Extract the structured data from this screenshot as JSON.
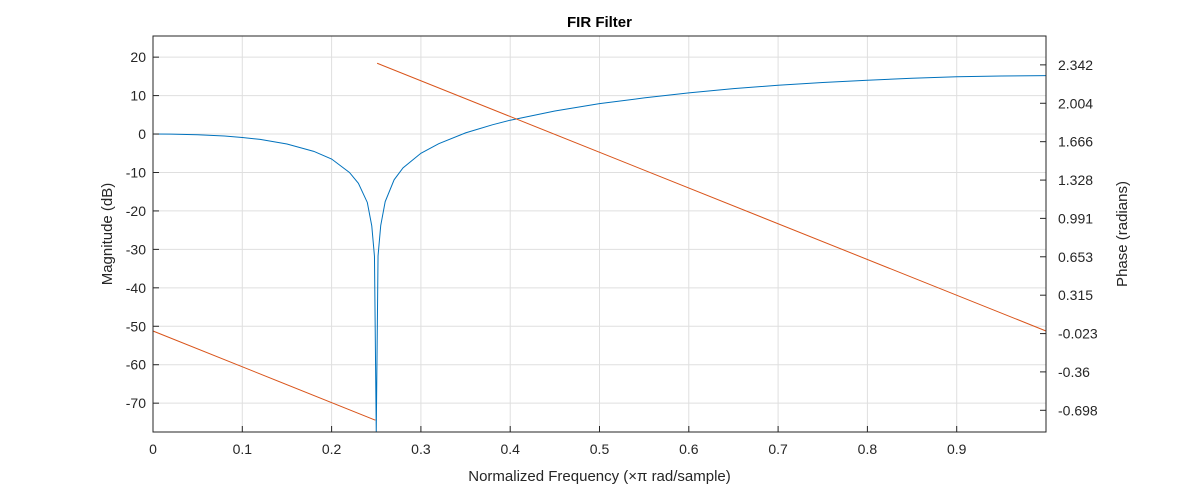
{
  "chart_data": {
    "type": "line",
    "title": "FIR Filter",
    "xlabel": "Normalized Frequency (×π rad/sample)",
    "ylabel_left": "Magnitude (dB)",
    "ylabel_right": "Phase (radians)",
    "xlim": [
      0,
      1
    ],
    "ylim_left": [
      -77.5,
      25.5
    ],
    "ylim_right": [
      -0.889,
      2.596
    ],
    "xticks": [
      0,
      0.1,
      0.2,
      0.3,
      0.4,
      0.5,
      0.6,
      0.7,
      0.8,
      0.9
    ],
    "xtick_labels": [
      "0",
      "0.1",
      "0.2",
      "0.3",
      "0.4",
      "0.5",
      "0.6",
      "0.7",
      "0.8",
      "0.9"
    ],
    "yticks_left": [
      20,
      10,
      0,
      -10,
      -20,
      -30,
      -40,
      -50,
      -60,
      -70
    ],
    "ytick_labels_left": [
      "20",
      "10",
      "0",
      "-10",
      "-20",
      "-30",
      "-40",
      "-50",
      "-60",
      "-70"
    ],
    "yticks_right": [
      2.342,
      2.004,
      1.666,
      1.328,
      0.991,
      0.653,
      0.315,
      -0.023,
      -0.36,
      -0.698
    ],
    "ytick_labels_right": [
      "2.342",
      "2.004",
      "1.666",
      "1.328",
      "0.991",
      "0.653",
      "0.315",
      "-0.023",
      "-0.36",
      "-0.698"
    ],
    "grid": true,
    "series": [
      {
        "axis": "left",
        "color": "#0072BD",
        "x": [
          0,
          0.02,
          0.05,
          0.08,
          0.1,
          0.12,
          0.15,
          0.18,
          0.2,
          0.22,
          0.23,
          0.24,
          0.245,
          0.248,
          0.25,
          0.252,
          0.255,
          0.26,
          0.27,
          0.28,
          0.3,
          0.32,
          0.35,
          0.38,
          0.4,
          0.45,
          0.5,
          0.55,
          0.6,
          0.65,
          0.7,
          0.75,
          0.8,
          0.85,
          0.9,
          0.95,
          1.0
        ],
        "y": [
          0,
          -0.03,
          -0.2,
          -0.5,
          -0.9,
          -1.4,
          -2.6,
          -4.5,
          -6.5,
          -10.0,
          -12.8,
          -17.8,
          -23.9,
          -31.8,
          -77.5,
          -31.7,
          -23.8,
          -17.6,
          -11.9,
          -8.8,
          -5.0,
          -2.5,
          0.3,
          2.4,
          3.6,
          6.0,
          7.9,
          9.4,
          10.7,
          11.8,
          12.7,
          13.4,
          14.0,
          14.5,
          14.9,
          15.1,
          15.2
        ]
      },
      {
        "axis": "right",
        "color": "#D95319",
        "x": [
          0,
          0.249,
          null,
          0.251,
          1.0
        ],
        "y": [
          -0.0,
          -0.785,
          null,
          2.356,
          -0.0
        ]
      }
    ]
  }
}
